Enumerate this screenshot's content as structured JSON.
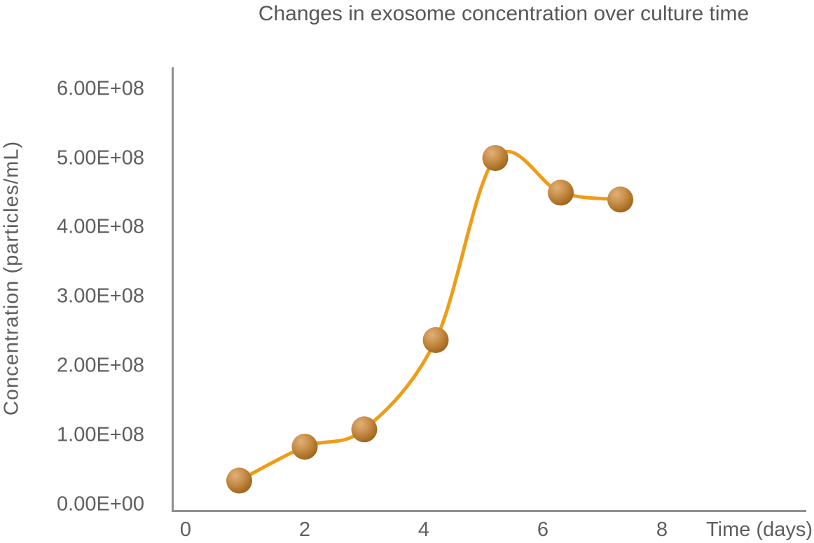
{
  "chart_data": {
    "type": "line",
    "title": "Changes in exosome concentration over culture time",
    "xlabel": "Time (days)",
    "ylabel": "Concentration (particles/mL)",
    "x": [
      0.9,
      2.0,
      3.0,
      4.2,
      5.2,
      6.3,
      7.3
    ],
    "y": [
      34000000,
      83000000,
      108000000,
      237000000,
      500000000,
      450000000,
      440000000
    ],
    "x_ticks": [
      0,
      2,
      4,
      6,
      8
    ],
    "y_ticks": [
      0,
      100000000,
      200000000,
      300000000,
      400000000,
      500000000,
      600000000
    ],
    "y_tick_labels": [
      "0.00E+00",
      "1.00E+08",
      "2.00E+08",
      "3.00E+08",
      "4.00E+08",
      "5.00E+08",
      "6.00E+08"
    ],
    "xlim": [
      -0.25,
      10.4
    ],
    "ylim": [
      -12000000,
      631000000
    ],
    "grid": false,
    "legend": false,
    "line_smooth": true,
    "marker": "3d-sphere"
  },
  "colors": {
    "line": "#EF9C18",
    "marker_highlight": "#E0B077",
    "marker_mid": "#CB9350",
    "marker_dark": "#AF7429",
    "marker_edge": "#9B611C",
    "axis_line": "#8F8F8F",
    "text": "#5E5E5E",
    "title_text": "#575757",
    "background": "#FFFFFF"
  }
}
